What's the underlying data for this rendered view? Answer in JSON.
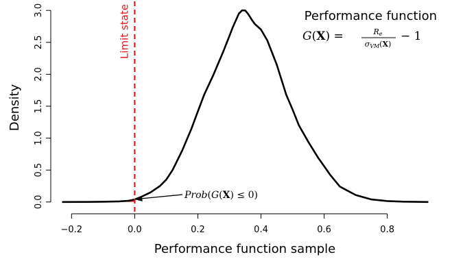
{
  "chart_data": {
    "type": "line",
    "xlabel": "Performance function sample",
    "ylabel": "Density",
    "xlim": [
      -0.255,
      0.955
    ],
    "ylim": [
      -0.12,
      3.12
    ],
    "xticks": [
      -0.2,
      0.0,
      0.2,
      0.4,
      0.6,
      0.8
    ],
    "xtick_labels": [
      "−0.2",
      "0.0",
      "0.2",
      "0.4",
      "0.6",
      "0.8"
    ],
    "yticks": [
      0.0,
      0.5,
      1.0,
      1.5,
      2.0,
      2.5,
      3.0
    ],
    "ytick_labels": [
      "0.0",
      "0.5",
      "1.0",
      "1.5",
      "2.0",
      "2.5",
      "3.0"
    ],
    "grid": false,
    "series": [
      {
        "color": "#000000",
        "x": [
          -0.23,
          -0.15,
          -0.1,
          -0.05,
          -0.02,
          0.0,
          0.02,
          0.05,
          0.08,
          0.1,
          0.12,
          0.15,
          0.18,
          0.2,
          0.22,
          0.25,
          0.28,
          0.3,
          0.31,
          0.32,
          0.33,
          0.34,
          0.35,
          0.36,
          0.37,
          0.38,
          0.4,
          0.42,
          0.45,
          0.48,
          0.5,
          0.52,
          0.55,
          0.58,
          0.6,
          0.62,
          0.65,
          0.7,
          0.75,
          0.8,
          0.85,
          0.93
        ],
        "y": [
          0.0,
          0.001,
          0.004,
          0.01,
          0.02,
          0.04,
          0.08,
          0.15,
          0.25,
          0.35,
          0.5,
          0.8,
          1.15,
          1.42,
          1.68,
          2.0,
          2.35,
          2.6,
          2.73,
          2.84,
          2.95,
          3.0,
          3.0,
          2.94,
          2.86,
          2.79,
          2.7,
          2.53,
          2.15,
          1.68,
          1.45,
          1.2,
          0.94,
          0.7,
          0.56,
          0.42,
          0.24,
          0.11,
          0.04,
          0.015,
          0.005,
          0.0
        ]
      }
    ],
    "limit_state": {
      "x": 0.0,
      "label": "Limit state",
      "color": "#e31a1c"
    },
    "annotations": {
      "title": "Performance function",
      "formula": "G(X) = R_e / σ_VM(X) − 1",
      "prob": "Prob(G(X) ≤ 0)",
      "prob_point": [
        0.0,
        0.04
      ]
    }
  }
}
